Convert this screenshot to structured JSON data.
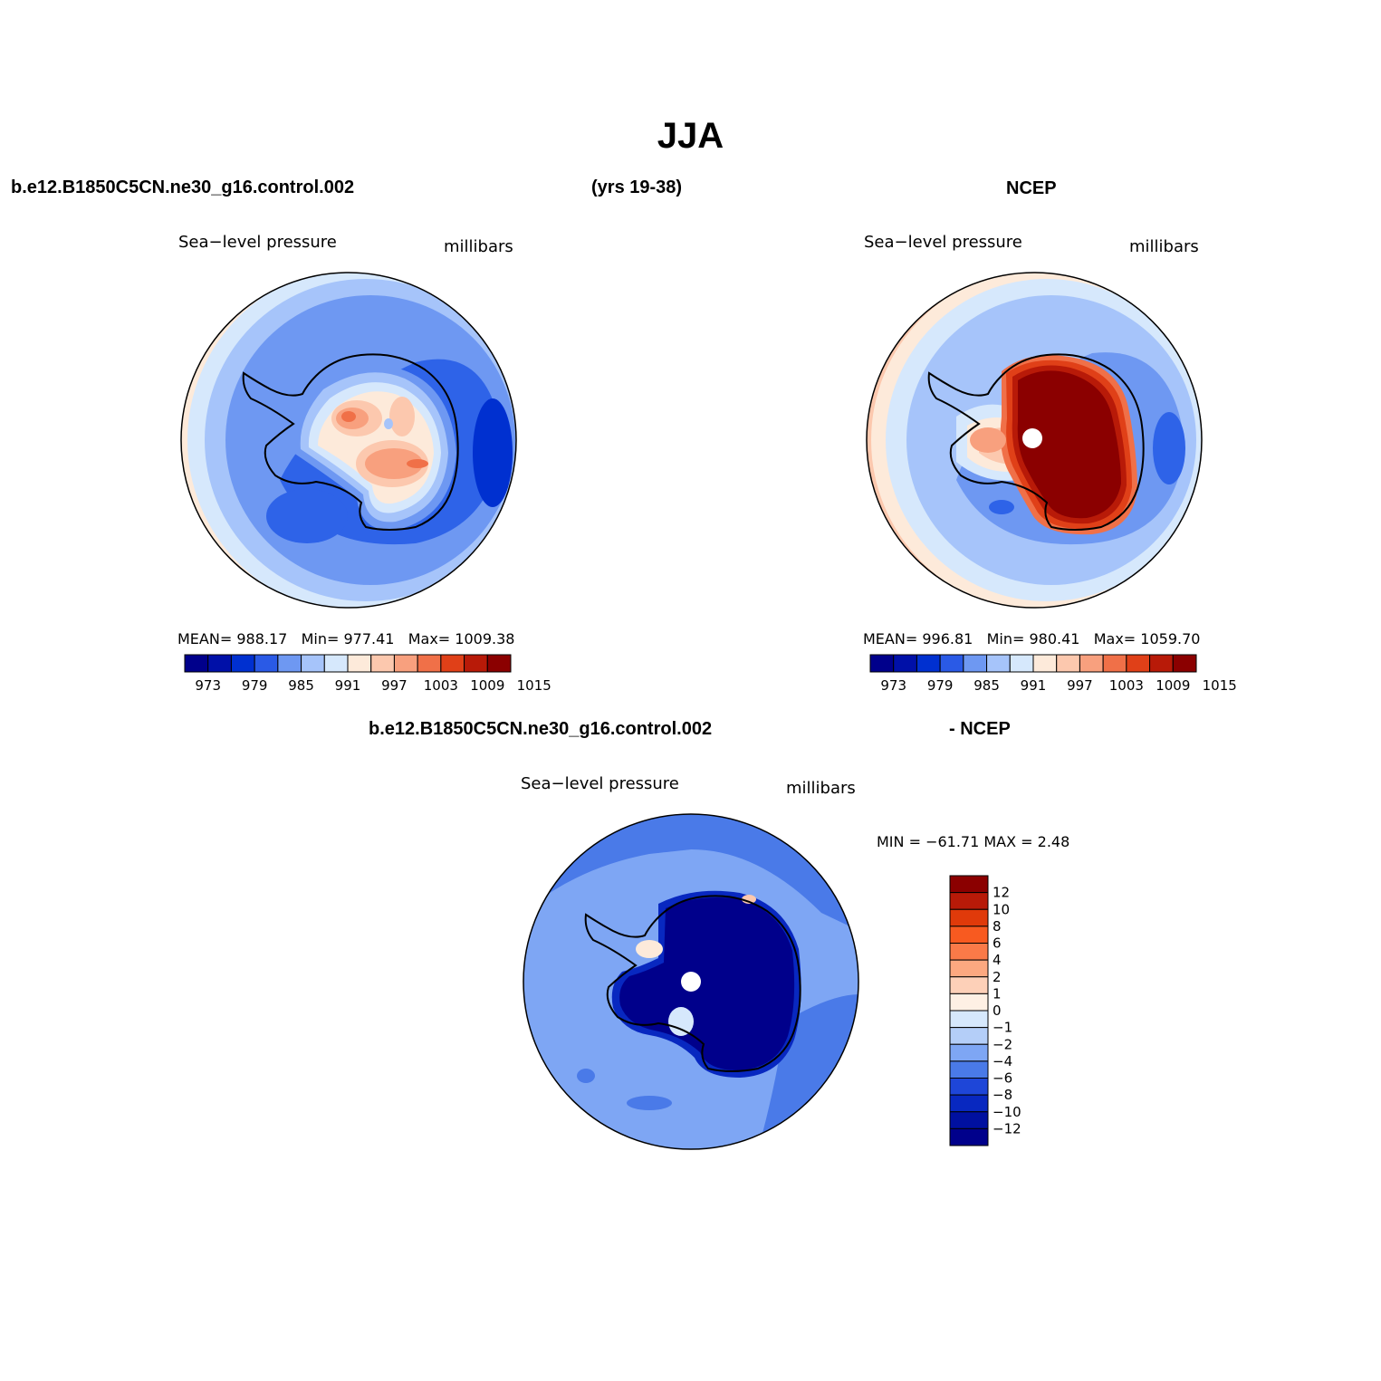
{
  "title": "JJA",
  "top_row": {
    "model_name": "b.e12.B1850C5CN.ne30_g16.control.002",
    "years": "(yrs 19-38)",
    "obs_name": "NCEP"
  },
  "panels": [
    {
      "id": "model",
      "variable": "Sea−level pressure",
      "units": "millibars",
      "mean_label": "MEAN=",
      "mean": "988.17",
      "min_label": "Min=",
      "min": "977.41",
      "max_label": "Max=",
      "max": "1009.38"
    },
    {
      "id": "ncep",
      "variable": "Sea−level pressure",
      "units": "millibars",
      "mean_label": "MEAN=",
      "mean": "996.81",
      "min_label": "Min=",
      "min": "980.41",
      "max_label": "Max=",
      "max": "1059.70"
    }
  ],
  "diff": {
    "title_left": "b.e12.B1850C5CN.ne30_g16.control.002",
    "title_right": "- NCEP",
    "variable": "Sea−level pressure",
    "units": "millibars",
    "minmax_text": "MIN = −61.71  MAX =    2.48"
  },
  "colorbar_abs": {
    "colors": [
      "#00008b",
      "#0010a8",
      "#0030d0",
      "#2a5ae6",
      "#6e98f2",
      "#a6c4fa",
      "#d6e8fc",
      "#fdeada",
      "#fcc8ae",
      "#f8a07e",
      "#f07048",
      "#e04018",
      "#b81a08",
      "#8b0000"
    ],
    "tick_labels": [
      "973",
      "979",
      "985",
      "991",
      "997",
      "1003",
      "1009",
      "1015"
    ]
  },
  "colorbar_diff": {
    "colors": [
      "#8b0000",
      "#b81a08",
      "#e03a0a",
      "#f85a20",
      "#fa7a48",
      "#fca880",
      "#fdd0b8",
      "#fef0e4",
      "#d6e8fc",
      "#b4cef8",
      "#7ea6f4",
      "#4a7ae8",
      "#1e46d8",
      "#0828c0",
      "#0010a0",
      "#00008b"
    ],
    "tick_labels": [
      "12",
      "10",
      "8",
      "6",
      "4",
      "2",
      "1",
      "0",
      "−1",
      "−2",
      "−4",
      "−6",
      "−8",
      "−10",
      "−12"
    ]
  },
  "maps": {
    "model_background": "#2e63e8",
    "ncep_background": "#3d6ef0",
    "diff_background": "#7ea6f4",
    "antarctica_high": "#8b0000",
    "pole_marker": "#ffffff",
    "coastline": "#000000"
  }
}
